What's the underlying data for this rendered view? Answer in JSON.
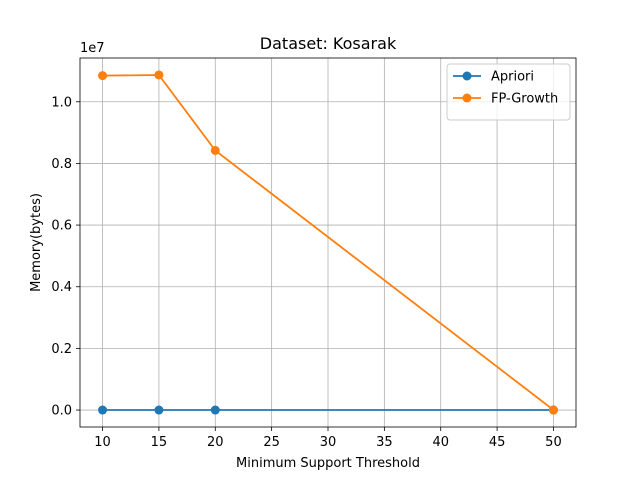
{
  "chart_data": {
    "type": "line",
    "title": "Dataset: Kosarak",
    "xlabel": "Minimum Support Threshold",
    "ylabel": "Memory(bytes)",
    "y_scale_label": "1e7",
    "x": [
      10,
      15,
      20,
      50
    ],
    "series": [
      {
        "name": "Apriori",
        "color": "#1f77b4",
        "values": [
          0,
          0,
          0,
          0
        ]
      },
      {
        "name": "FP-Growth",
        "color": "#ff7f0e",
        "values": [
          10850000,
          10870000,
          8420000,
          0
        ]
      }
    ],
    "xlim": [
      8,
      52
    ],
    "ylim": [
      -550000,
      11420000
    ],
    "x_ticks": [
      10,
      15,
      20,
      25,
      30,
      35,
      40,
      45,
      50
    ],
    "x_tick_labels": [
      "10",
      "15",
      "20",
      "25",
      "30",
      "35",
      "40",
      "45",
      "50"
    ],
    "y_ticks": [
      0,
      2000000,
      4000000,
      6000000,
      8000000,
      10000000
    ],
    "y_tick_labels": [
      "0.0",
      "0.2",
      "0.4",
      "0.6",
      "0.8",
      "1.0"
    ],
    "grid": true,
    "legend_position": "top-right",
    "marker": "circle"
  }
}
